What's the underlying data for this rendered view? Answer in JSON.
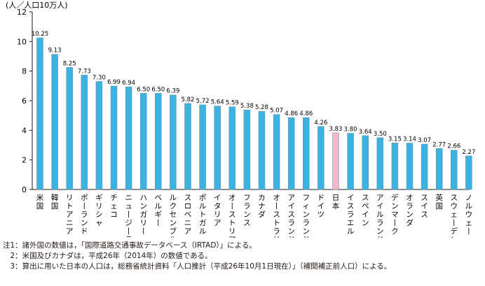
{
  "chart_data": {
    "type": "bar",
    "ylabel": "(人／人口10万人)",
    "ylim": [
      0,
      12
    ],
    "yticks": [
      0,
      2,
      4,
      6,
      8,
      10,
      12
    ],
    "grid": false,
    "categories": [
      "米国",
      "韓国",
      "リトアニア",
      "ポーランド",
      "ギリシャ",
      "チェコ",
      "ニュージーランド",
      "ハンガリー",
      "ベルギー",
      "ルクセンブルク",
      "スロベニア",
      "ポルトガル",
      "イタリア",
      "オーストリア",
      "フランス",
      "カナダ",
      "オーストラリア",
      "アイスランド",
      "フィンランド",
      "ドイツ",
      "日本",
      "イスラエル",
      "スペイン",
      "アイルランド",
      "デンマーク",
      "オランダ",
      "スイス",
      "英国",
      "スウェーデン",
      "ノルウェー"
    ],
    "values": [
      10.25,
      9.13,
      8.25,
      7.73,
      7.3,
      6.99,
      6.94,
      6.5,
      6.5,
      6.39,
      5.82,
      5.72,
      5.64,
      5.59,
      5.38,
      5.28,
      5.07,
      4.86,
      4.86,
      4.26,
      3.83,
      3.8,
      3.64,
      3.5,
      3.15,
      3.14,
      3.07,
      2.77,
      2.66,
      2.27
    ],
    "value_labels": [
      "10.25",
      "9.13",
      "8.25",
      "7.73",
      "7.30",
      "6.99",
      "6.94",
      "6.50",
      "6.50",
      "6.39",
      "5.82",
      "5.72",
      "5.64",
      "5.59",
      "5.38",
      "5.28",
      "5.07",
      "4.86",
      "4.86",
      "4.26",
      "3.83",
      "3.80",
      "3.64",
      "3.50",
      "3.15",
      "3.14",
      "3.07",
      "2.77",
      "2.66",
      "2.27"
    ],
    "highlight_category": "日本",
    "colors": {
      "bar": "#3ab3e3",
      "highlight": "#f3b6cd",
      "axis": "#231815"
    }
  },
  "notes": [
    "注1：諸外国の数値は，「国際道路交通事故データベース（IRTAD）」による。",
    "　2：米国及びカナダは，平成26年（2014年）の数値である。",
    "　3：算出に用いた日本の人口は，総務省統計資料「人口推計（平成26年10月1日現在）」（補間補正前人口）による。"
  ]
}
